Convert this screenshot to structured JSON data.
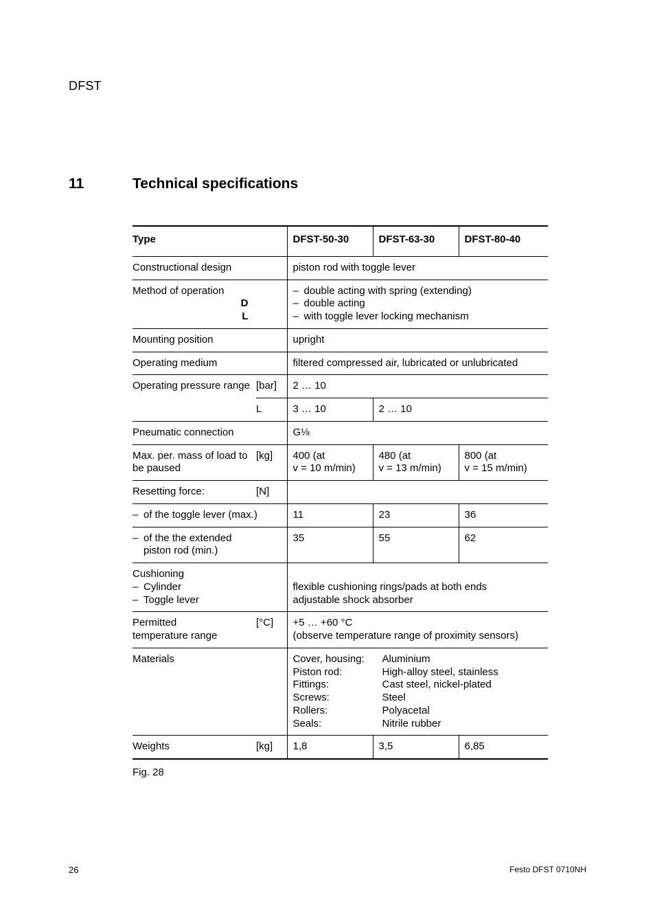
{
  "doc_header": "DFST",
  "section_number": "11",
  "section_title": "Technical specifications",
  "columns": {
    "type": "Type",
    "c3": "DFST-50-30",
    "c4": "DFST-63-30",
    "c5": "DFST-80-40"
  },
  "rows": {
    "constructional_label": "Constructional design",
    "constructional_value": "piston rod with toggle lever",
    "method_label": "Method of operation",
    "method_sub_d": "D",
    "method_sub_l": "L",
    "method_item1": "double acting with spring (extending)",
    "method_item2": "double acting",
    "method_item3": "with toggle lever locking mechanism",
    "mounting_label": "Mounting position",
    "mounting_value": "upright",
    "medium_label": "Operating medium",
    "medium_value": "filtered compressed air, lubricated or unlubricated",
    "pressure_label": "Operating pressure range",
    "pressure_unit": "[bar]",
    "pressure_row1": "2 … 10",
    "pressure_l_label": "L",
    "pressure_l_c3": "3 … 10",
    "pressure_l_c45": "2 … 10",
    "pneumatic_label": "Pneumatic connection",
    "pneumatic_value": "G⅛",
    "mass_label": "Max. per. mass of load to be paused",
    "mass_unit": "[kg]",
    "mass_c3_a": "400 (at",
    "mass_c3_b": "v = 10 m/min)",
    "mass_c4_a": "480 (at",
    "mass_c4_b": "v = 13 m/min)",
    "mass_c5_a": "800 (at",
    "mass_c5_b": "v = 15 m/min)",
    "reset_label": "Resetting force:",
    "reset_unit": "[N]",
    "reset_toggle_label": "of the toggle lever (max.)",
    "reset_toggle_c3": "11",
    "reset_toggle_c4": "23",
    "reset_toggle_c5": "36",
    "reset_piston_label_a": "of the the extended",
    "reset_piston_label_b": "piston rod (min.)",
    "reset_piston_c3": "35",
    "reset_piston_c4": "55",
    "reset_piston_c5": "62",
    "cushion_label": "Cushioning",
    "cushion_sub1": "Cylinder",
    "cushion_sub2": "Toggle lever",
    "cushion_val1": "flexible cushioning rings/pads at both ends",
    "cushion_val2": "adjustable shock absorber",
    "temp_label_a": "Permitted",
    "temp_label_b": "temperature range",
    "temp_unit": "[°C]",
    "temp_val_a": "+5 … +60 °C",
    "temp_val_b": "(observe temperature range of proximity sensors)",
    "materials_label": "Materials",
    "mat_l1": "Cover, housing:",
    "mat_r1": "Aluminium",
    "mat_l2": "Piston rod:",
    "mat_r2": "High-alloy steel, stainless",
    "mat_l3": "Fittings:",
    "mat_r3": "Cast steel, nickel-plated",
    "mat_l4": "Screws:",
    "mat_r4": "Steel",
    "mat_l5": "Rollers:",
    "mat_r5": "Polyacetal",
    "mat_l6": "Seals:",
    "mat_r6": "Nitrile rubber",
    "weights_label": "Weights",
    "weights_unit": "[kg]",
    "weights_c3": "1,8",
    "weights_c4": "3,5",
    "weights_c5": "6,85"
  },
  "figure_caption": "Fig. 28",
  "footer_page": "26",
  "footer_doc": "Festo DFST 0710NH"
}
